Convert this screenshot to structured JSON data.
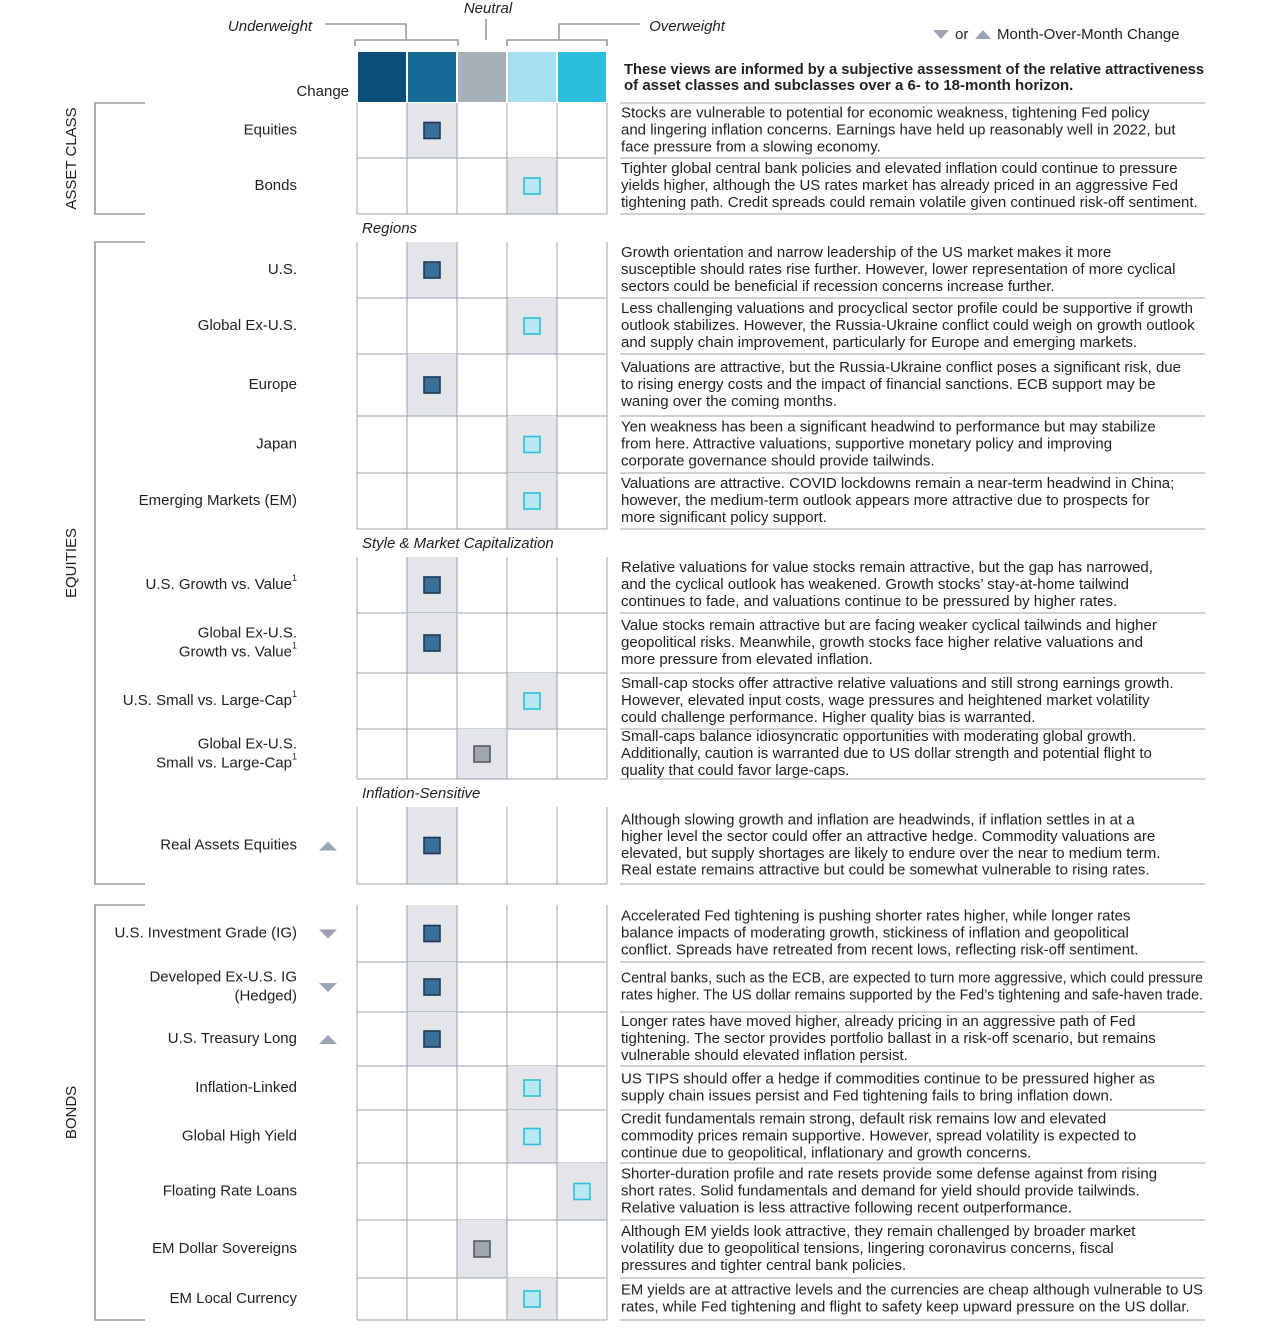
{
  "header": {
    "underweight": "Underweight",
    "neutral": "Neutral",
    "overweight": "Overweight",
    "legend_or": "or",
    "legend_text": "Month-Over-Month Change",
    "change": "Change",
    "scale_colors": [
      "#0b4e7a",
      "#176a98",
      "#a7b0b9",
      "#a6dff0",
      "#2bbfdf"
    ],
    "intro": [
      "These views are informed by a subjective assessment of the relative attractiveness",
      "of asset classes and subclasses over a 6- to 18-month horizon."
    ]
  },
  "sections": [
    {
      "label": "ASSET CLASS",
      "rows": [
        {
          "name": [
            "Equities"
          ],
          "view": 1,
          "text": [
            "Stocks are vulnerable to potential for economic weakness, tightening Fed policy",
            "and lingering inflation concerns. Earnings have held up reasonably well in 2022, but",
            "face pressure from a slowing economy."
          ]
        },
        {
          "name": [
            "Bonds"
          ],
          "view": 3,
          "text": [
            "Tighter global central bank policies and elevated inflation could continue to pressure",
            "yields higher, although the US rates market has already priced in an aggressive Fed",
            "tightening path. Credit spreads could remain volatile given continued risk-off sentiment."
          ]
        }
      ]
    },
    {
      "label": "EQUITIES",
      "rows": [
        {
          "subheading": "Regions"
        },
        {
          "name": [
            "U.S."
          ],
          "view": 1,
          "text": [
            "Growth orientation and narrow leadership of the US market makes it more",
            "susceptible should rates rise further. However, lower representation of more cyclical",
            "sectors could be beneficial if recession concerns increase further."
          ]
        },
        {
          "name": [
            "Global Ex-U.S."
          ],
          "view": 3,
          "text": [
            "Less challenging valuations and procyclical sector profile could be supportive if growth",
            "outlook stabilizes. However, the Russia-Ukraine conflict could weigh on growth outlook",
            "and supply chain improvement, particularly for Europe and emerging markets."
          ]
        },
        {
          "name": [
            "Europe"
          ],
          "view": 1,
          "text": [
            "Valuations are attractive, but the Russia-Ukraine conflict poses a significant risk, due",
            "to rising energy costs and the impact of financial sanctions. ECB support may be",
            "waning over the coming months."
          ]
        },
        {
          "name": [
            "Japan"
          ],
          "view": 3,
          "text": [
            "Yen weakness has been a significant headwind to performance but may stabilize",
            "from here. Attractive valuations, supportive monetary policy and improving",
            "corporate governance should provide tailwinds."
          ]
        },
        {
          "name": [
            "Emerging Markets (EM)"
          ],
          "view": 3,
          "text": [
            "Valuations are attractive. COVID lockdowns remain a near-term headwind in China;",
            "however, the medium-term outlook appears more attractive due to prospects for",
            "more significant policy support."
          ]
        },
        {
          "subheading": "Style & Market Capitalization"
        },
        {
          "name": [
            "U.S. Growth vs. Value"
          ],
          "footnote": "1",
          "view": 1,
          "text": [
            "Relative valuations for value stocks remain attractive, but the gap has narrowed,",
            "and the cyclical outlook has weakened. Growth stocks’ stay-at-home tailwind",
            "continues to fade, and valuations continue to be pressured by higher rates."
          ]
        },
        {
          "name": [
            "Global Ex-U.S.",
            "Growth vs. Value"
          ],
          "footnote": "1",
          "view": 1,
          "text": [
            "Value stocks remain attractive but are facing weaker cyclical tailwinds and higher",
            "geopolitical risks. Meanwhile, growth stocks face higher relative valuations and",
            "more pressure from elevated inflation."
          ]
        },
        {
          "name": [
            "U.S. Small vs. Large-Cap"
          ],
          "footnote": "1",
          "view": 3,
          "text": [
            "Small-cap stocks offer attractive relative valuations and still strong earnings growth.",
            "However, elevated input costs, wage pressures and heightened market volatility",
            "could challenge performance. Higher quality bias is warranted."
          ]
        },
        {
          "name": [
            "Global Ex-U.S.",
            "Small vs. Large-Cap"
          ],
          "footnote": "1",
          "view": 2,
          "text": [
            "Small-caps balance idiosyncratic opportunities with moderating global growth.",
            "Additionally, caution is warranted due to US dollar strength and potential flight to",
            "quality that could favor large-caps."
          ]
        },
        {
          "subheading": "Inflation-Sensitive"
        },
        {
          "name": [
            "Real Assets Equities"
          ],
          "change": "up",
          "view": 1,
          "text": [
            "Although slowing growth and inflation are headwinds, if inflation settles in at a",
            "higher level the sector could offer an attractive hedge. Commodity valuations are",
            "elevated, but supply shortages are likely to endure over the near to medium term.",
            "Real estate remains attractive but could be somewhat vulnerable to rising rates."
          ]
        }
      ]
    },
    {
      "label": "BONDS",
      "rows": [
        {
          "name": [
            "U.S. Investment Grade (IG)"
          ],
          "change": "down",
          "view": 1,
          "text": [
            "Accelerated Fed tightening is pushing shorter rates higher, while longer rates",
            "balance impacts of moderating growth, stickiness of inflation and geopolitical",
            "conflict. Spreads have retreated from recent lows, reflecting risk-off sentiment."
          ]
        },
        {
          "name": [
            "Developed Ex-U.S. IG",
            "(Hedged)"
          ],
          "change": "down",
          "view": 1,
          "text": [
            "Central banks, such as the ECB, are expected to turn more aggressive, which could pressure",
            "rates higher. The US dollar remains supported by the Fed’s tightening and safe-haven trade."
          ]
        },
        {
          "name": [
            "U.S. Treasury Long"
          ],
          "change": "up",
          "view": 1,
          "text": [
            "Longer rates have moved higher, already pricing in an aggressive path of Fed",
            "tightening. The sector provides portfolio ballast in a risk-off scenario, but remains",
            "vulnerable should elevated inflation persist."
          ]
        },
        {
          "name": [
            "Inflation-Linked"
          ],
          "view": 3,
          "text": [
            "US TIPS should offer a hedge if commodities continue to be pressured higher as",
            "supply chain issues persist and Fed tightening fails to bring inflation down."
          ]
        },
        {
          "name": [
            "Global High Yield"
          ],
          "view": 3,
          "text": [
            "Credit fundamentals remain strong, default risk remains low and elevated",
            "commodity prices remain supportive. However, spread volatility is expected to",
            "continue due to geopolitical, inflationary and growth concerns."
          ]
        },
        {
          "name": [
            "Floating Rate Loans"
          ],
          "view": 4,
          "text": [
            "Shorter-duration profile and rate resets provide some defense against from rising",
            "short rates. Solid fundamentals and demand for yield should provide tailwinds.",
            "Relative valuation is less attractive following recent outperformance."
          ]
        },
        {
          "name": [
            "EM Dollar Sovereigns"
          ],
          "view": 2,
          "text": [
            "Although EM yields look attractive, they remain challenged by broader market",
            "volatility due to geopolitical tensions, lingering coronavirus concerns, fiscal",
            "pressures and tighter central bank policies."
          ]
        },
        {
          "name": [
            "EM Local Currency"
          ],
          "view": 3,
          "text": [
            "EM yields are at attractive levels and the currencies are cheap although vulnerable to US",
            "rates, while Fed tightening and flight to safety keep upward pressure on the US dollar."
          ]
        }
      ]
    }
  ]
}
